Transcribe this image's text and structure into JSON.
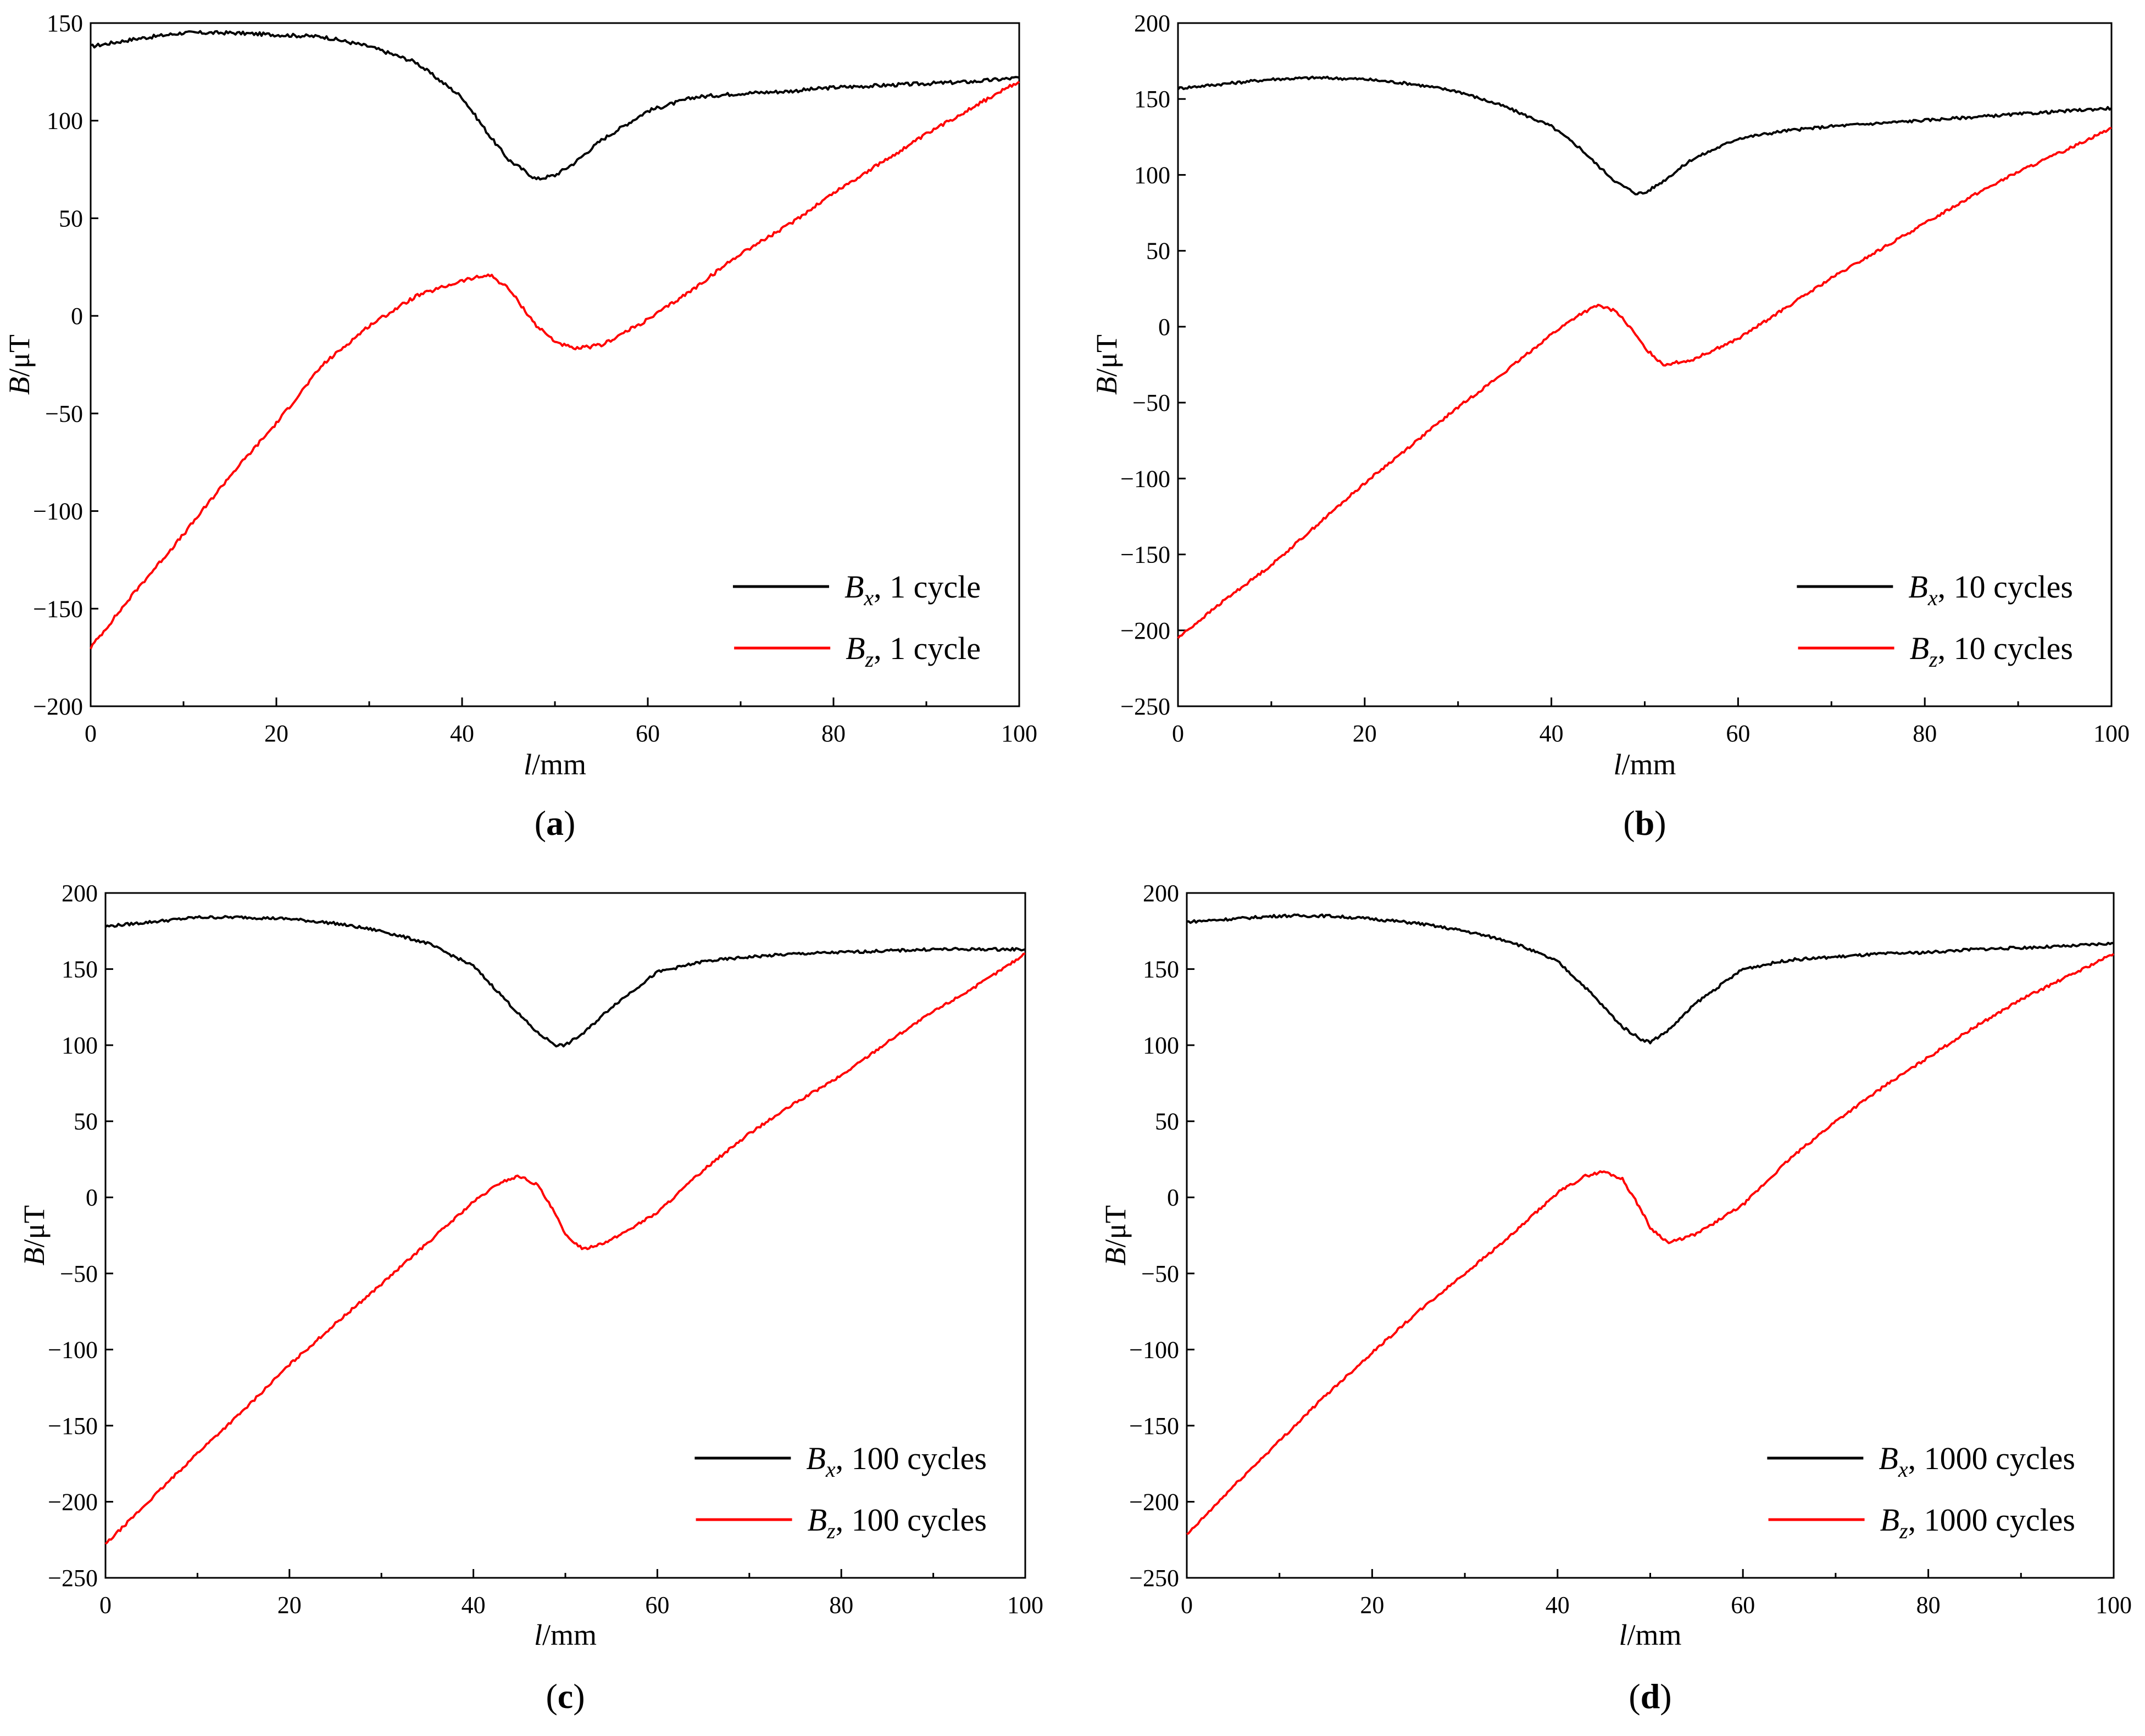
{
  "figure": {
    "panels": [
      {
        "caption_letter": "a",
        "xlabel_var": "l",
        "xlabel_unit": "/mm",
        "ylabel_var": "B",
        "ylabel_unit": "/μT"
      },
      {
        "caption_letter": "b",
        "xlabel_var": "l",
        "xlabel_unit": "/mm",
        "ylabel_var": "B",
        "ylabel_unit": "/μT"
      },
      {
        "caption_letter": "c",
        "xlabel_var": "l",
        "xlabel_unit": "/mm",
        "ylabel_var": "B",
        "ylabel_unit": "/μT"
      },
      {
        "caption_letter": "d",
        "xlabel_var": "l",
        "xlabel_unit": "/mm",
        "ylabel_var": "B",
        "ylabel_unit": "/μT"
      }
    ]
  },
  "chart_data": [
    {
      "type": "line",
      "panel": "a",
      "xlabel": "l/mm",
      "ylabel": "B/μT",
      "xlim": [
        0,
        100
      ],
      "ylim": [
        -200,
        150
      ],
      "xticks": [
        0,
        20,
        40,
        60,
        80,
        100
      ],
      "yticks": [
        -200,
        -150,
        -100,
        -50,
        0,
        50,
        100,
        150
      ],
      "x": [
        0,
        5,
        10,
        15,
        20,
        25,
        30,
        35,
        40,
        43,
        45,
        48,
        50,
        52,
        55,
        60,
        65,
        70,
        75,
        80,
        85,
        90,
        95,
        100
      ],
      "series": [
        {
          "name": "Bx",
          "legend_var": "B",
          "legend_sub": "x",
          "legend_rest": ", 1 cycle",
          "color": "#000000",
          "values": [
            138,
            142,
            145,
            145,
            144,
            143,
            138,
            130,
            112,
            92,
            80,
            70,
            72,
            78,
            90,
            105,
            112,
            114,
            115,
            117,
            118,
            119,
            120,
            122
          ]
        },
        {
          "name": "Bz",
          "legend_var": "B",
          "legend_sub": "z",
          "legend_rest": ", 1 cycle",
          "color": "#ff0000",
          "values": [
            -170,
            -140,
            -112,
            -82,
            -55,
            -25,
            -5,
            10,
            18,
            21,
            14,
            -5,
            -13,
            -17,
            -15,
            -2,
            14,
            32,
            46,
            63,
            78,
            93,
            107,
            120
          ]
        }
      ]
    },
    {
      "type": "line",
      "panel": "b",
      "xlabel": "l/mm",
      "ylabel": "B/μT",
      "xlim": [
        0,
        100
      ],
      "ylim": [
        -250,
        200
      ],
      "xticks": [
        0,
        20,
        40,
        60,
        80,
        100
      ],
      "yticks": [
        -250,
        -200,
        -150,
        -100,
        -50,
        0,
        50,
        100,
        150,
        200
      ],
      "x": [
        0,
        5,
        10,
        15,
        20,
        25,
        30,
        35,
        40,
        43,
        45,
        47,
        49,
        50,
        52,
        55,
        60,
        65,
        70,
        75,
        80,
        85,
        90,
        95,
        100
      ],
      "series": [
        {
          "name": "Bx",
          "legend_var": "B",
          "legend_sub": "x",
          "legend_rest": ", 10 cycles",
          "color": "#000000",
          "values": [
            157,
            160,
            163,
            164,
            163,
            160,
            155,
            145,
            132,
            118,
            106,
            95,
            88,
            88,
            96,
            110,
            124,
            129,
            132,
            134,
            136,
            138,
            140,
            142,
            144
          ]
        },
        {
          "name": "Bz",
          "legend_var": "B",
          "legend_sub": "z",
          "legend_rest": ", 10 cycles",
          "color": "#ff0000",
          "values": [
            -205,
            -180,
            -157,
            -130,
            -103,
            -78,
            -53,
            -30,
            -5,
            8,
            14,
            10,
            -5,
            -14,
            -25,
            -22,
            -8,
            12,
            32,
            50,
            68,
            86,
            102,
            116,
            131
          ]
        }
      ]
    },
    {
      "type": "line",
      "panel": "c",
      "xlabel": "l/mm",
      "ylabel": "B/μT",
      "xlim": [
        0,
        100
      ],
      "ylim": [
        -250,
        200
      ],
      "xticks": [
        0,
        20,
        40,
        60,
        80,
        100
      ],
      "yticks": [
        -250,
        -200,
        -150,
        -100,
        -50,
        0,
        50,
        100,
        150,
        200
      ],
      "x": [
        0,
        5,
        10,
        15,
        20,
        25,
        30,
        35,
        40,
        43,
        45,
        47,
        49,
        50,
        52,
        55,
        60,
        65,
        70,
        75,
        80,
        85,
        90,
        95,
        100
      ],
      "series": [
        {
          "name": "Bx",
          "legend_var": "B",
          "legend_sub": "x",
          "legend_rest": ", 100 cycles",
          "color": "#000000",
          "values": [
            178,
            181,
            184,
            184,
            183,
            180,
            175,
            167,
            152,
            133,
            120,
            108,
            100,
            100,
            108,
            125,
            148,
            155,
            158,
            160,
            161,
            162,
            163,
            163,
            163
          ]
        },
        {
          "name": "Bz",
          "legend_var": "B",
          "legend_sub": "z",
          "legend_rest": ", 100 cycles",
          "color": "#ff0000",
          "values": [
            -228,
            -198,
            -168,
            -140,
            -110,
            -83,
            -57,
            -30,
            -3,
            10,
            14,
            8,
            -12,
            -25,
            -34,
            -28,
            -10,
            18,
            42,
            62,
            80,
            102,
            122,
            140,
            160
          ]
        }
      ]
    },
    {
      "type": "line",
      "panel": "d",
      "xlabel": "l/mm",
      "ylabel": "B/μT",
      "xlim": [
        0,
        100
      ],
      "ylim": [
        -250,
        200
      ],
      "xticks": [
        0,
        20,
        40,
        60,
        80,
        100
      ],
      "yticks": [
        -250,
        -200,
        -150,
        -100,
        -50,
        0,
        50,
        100,
        150,
        200
      ],
      "x": [
        0,
        5,
        10,
        15,
        20,
        25,
        30,
        35,
        40,
        43,
        45,
        47,
        49,
        50,
        52,
        55,
        60,
        65,
        70,
        75,
        80,
        85,
        90,
        95,
        100
      ],
      "series": [
        {
          "name": "Bx",
          "legend_var": "B",
          "legend_sub": "x",
          "legend_rest": ", 1000 cycles",
          "color": "#000000",
          "values": [
            181,
            183,
            185,
            185,
            183,
            180,
            175,
            168,
            155,
            138,
            125,
            112,
            104,
            102,
            110,
            128,
            150,
            156,
            158,
            160,
            161,
            163,
            164,
            165,
            167
          ]
        },
        {
          "name": "Bz",
          "legend_var": "B",
          "legend_sub": "z",
          "legend_rest": ", 1000 cycles",
          "color": "#ff0000",
          "values": [
            -222,
            -190,
            -160,
            -130,
            -102,
            -75,
            -50,
            -25,
            3,
            14,
            17,
            12,
            -8,
            -20,
            -30,
            -24,
            -5,
            25,
            50,
            72,
            92,
            112,
            130,
            145,
            160
          ]
        }
      ]
    }
  ]
}
